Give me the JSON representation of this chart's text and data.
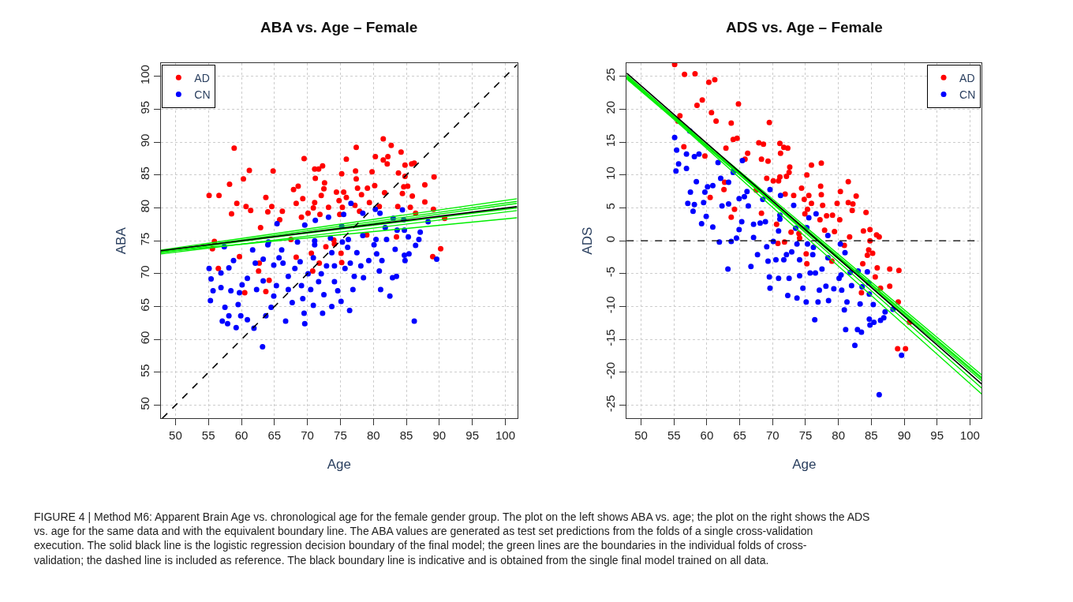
{
  "chart_data": [
    {
      "type": "scatter",
      "title": "ABA vs. Age – Female",
      "xlabel": "Age",
      "ylabel": "ABA",
      "xlim": [
        47.8,
        101.8
      ],
      "ylim": [
        48,
        102
      ],
      "xticks": [
        50,
        55,
        60,
        65,
        70,
        75,
        80,
        85,
        90,
        95,
        100
      ],
      "yticks": [
        50,
        55,
        60,
        65,
        70,
        75,
        80,
        85,
        90,
        95,
        100
      ],
      "grid": true,
      "legend": "top left",
      "annotations": [
        "FIGURE 4 | Method M6: Apparent Brain Age vs. chronological age for the female gender group. The plot on the left shows ABA vs. age; the plot on the right shows the ADS vs. age for the same data and with the equivalent boundary line. The ABA values are generated as test set predictions from the folds of a single cross-validation execution. The solid black line is the logistic regression decision boundary of the final model; the green lines are the boundaries in the individual folds of cross-validation; the dashed line is included as reference. The black boundary line is indicative and is obtained from the single final model trained on all data."
      ],
      "series": [
        {
          "name": "AD",
          "color": "#ff0000",
          "x": [
            55.1,
            56.6,
            58.9,
            61.2,
            58.2,
            60.3,
            59.3,
            60.7,
            61.4,
            58.5,
            62.9,
            63.7,
            64.8,
            64.6,
            64.0,
            66.2,
            65.8,
            67.9,
            68.6,
            69.5,
            68.3,
            69.3,
            69.1,
            70.1,
            71.1,
            72.3,
            71.7,
            71.2,
            72.6,
            72.5,
            72.1,
            71.1,
            70.9,
            71.9,
            73.2,
            74.4,
            75.5,
            75.9,
            75.9,
            75.2,
            74.8,
            75.3,
            74.9,
            77.4,
            77.3,
            77.4,
            77.6,
            78.2,
            77.2,
            77.9,
            79.1,
            79.8,
            80.2,
            80.3,
            79.4,
            80.9,
            81.5,
            81.5,
            82.2,
            82.1,
            82.7,
            81.7,
            84.2,
            83.8,
            84.8,
            85.8,
            86.2,
            84.8,
            84.6,
            85.2,
            84.4,
            85.9,
            83.7,
            85.6,
            87.8,
            89.2,
            87.8,
            89.1,
            90.8,
            86.4,
            55.9,
            55.6,
            56.5,
            59.7,
            62.7,
            62.6,
            64.2,
            60.5,
            63.7,
            67.5,
            68.3,
            70.6,
            70.8,
            71.8,
            72.8,
            74.0,
            75.1,
            75.2,
            74.1,
            89.0,
            90.2,
            83.5,
            79.0
          ],
          "values": [
            81.9,
            81.9,
            89.1,
            85.7,
            83.6,
            84.4,
            80.7,
            80.2,
            79.6,
            79.1,
            77.0,
            81.6,
            85.6,
            80.2,
            79.4,
            79.5,
            78.2,
            82.8,
            83.3,
            87.5,
            80.7,
            81.4,
            78.6,
            79.2,
            85.9,
            86.4,
            85.9,
            84.5,
            83.8,
            82.9,
            81.9,
            80.8,
            80.0,
            79.0,
            80.1,
            82.4,
            82.4,
            81.6,
            87.4,
            85.2,
            81.1,
            80.1,
            79.0,
            89.2,
            85.6,
            84.4,
            83.0,
            82.0,
            80.4,
            79.5,
            83.0,
            85.5,
            83.4,
            87.8,
            80.8,
            80.2,
            90.5,
            87.3,
            87.8,
            86.7,
            89.5,
            82.3,
            88.5,
            85.3,
            86.5,
            86.7,
            86.8,
            84.8,
            83.2,
            83.3,
            82.2,
            81.8,
            80.2,
            80.1,
            83.5,
            84.7,
            80.9,
            79.8,
            78.4,
            79.2,
            74.9,
            73.8,
            70.8,
            72.6,
            71.6,
            70.4,
            69.0,
            67.1,
            67.3,
            75.2,
            72.5,
            73.1,
            70.4,
            71.6,
            74.1,
            75.1,
            73.1,
            71.7,
            74.5,
            72.6,
            73.8,
            75.6,
            75.9
          ],
          "marker": "circle"
        },
        {
          "name": "CN",
          "color": "#0000ff",
          "x": [
            65.4,
            69.6,
            71.2,
            73.2,
            76.6,
            75.5,
            78.4,
            80.3,
            81.0,
            84.4,
            83.0,
            84.6,
            88.3,
            84.7,
            85.3,
            87.1,
            81.8,
            83.6,
            78.4,
            80.4,
            76.2,
            73.5,
            71.1,
            75.2,
            64.1,
            55.1,
            55.4,
            55.7,
            55.3,
            56.9,
            56.9,
            57.4,
            58.1,
            58.8,
            58.4,
            57.5,
            58.1,
            57.1,
            57.9,
            59.2,
            59.9,
            60.9,
            59.5,
            59.7,
            60.1,
            60.9,
            61.7,
            62.1,
            62.3,
            61.9,
            63.3,
            63.3,
            63.2,
            63.7,
            64.5,
            64.0,
            64.9,
            65.3,
            64.9,
            66.1,
            66.3,
            66.7,
            67.1,
            67.1,
            67.7,
            68.5,
            68.9,
            69.1,
            69.3,
            69.5,
            69.6,
            70.1,
            70.5,
            70.9,
            71.1,
            71.7,
            72.3,
            72.5,
            72.9,
            73.7,
            73.7,
            74.1,
            74.6,
            75.1,
            75.7,
            76.1,
            76.4,
            76.9,
            77.1,
            77.5,
            78.1,
            78.5,
            79.3,
            80.1,
            80.5,
            80.9,
            81.3,
            81.1,
            82.0,
            82.5,
            82.9,
            83.5,
            83.3,
            84.7,
            84.8,
            85.4,
            86.2,
            86.4,
            86.9,
            89.6,
            65.7,
            68.1,
            70.9,
            72.1,
            74.1,
            76.5,
            75.3
          ],
          "values": [
            77.6,
            77.4,
            78.1,
            78.6,
            80.7,
            79.0,
            79.2,
            79.8,
            79.2,
            79.7,
            78.4,
            78.2,
            77.9,
            76.6,
            75.6,
            76.3,
            77.0,
            76.6,
            75.8,
            75.2,
            75.2,
            75.4,
            75.0,
            77.2,
            74.8,
            70.8,
            69.2,
            67.4,
            65.9,
            67.9,
            70.1,
            74.1,
            70.9,
            72.0,
            67.4,
            64.9,
            63.6,
            62.8,
            62.4,
            61.8,
            63.6,
            63.0,
            65.3,
            67.1,
            68.3,
            69.3,
            73.6,
            71.6,
            67.6,
            61.7,
            72.2,
            68.9,
            58.9,
            63.6,
            64.9,
            74.4,
            71.3,
            68.2,
            66.6,
            73.6,
            71.6,
            62.8,
            69.6,
            67.6,
            65.6,
            74.8,
            71.8,
            68.2,
            66.2,
            64.0,
            62.4,
            70.0,
            67.6,
            65.2,
            74.4,
            68.8,
            64.0,
            66.8,
            71.2,
            65.0,
            73.2,
            68.8,
            67.4,
            65.8,
            70.8,
            74.0,
            64.4,
            67.6,
            69.6,
            73.2,
            71.2,
            69.4,
            72.0,
            74.4,
            73.0,
            70.4,
            72.0,
            67.6,
            75.2,
            66.6,
            69.4,
            69.6,
            73.7,
            72.8,
            72.0,
            73.0,
            62.8,
            74.3,
            75.2,
            72.2,
            72.4,
            70.8,
            72.4,
            70.0,
            71.2,
            71.6,
            74.8
          ],
          "marker": "circle"
        },
        {
          "type": "line",
          "color": "#00ee00",
          "x": [
            47.8,
            101.8
          ],
          "values": [
            73.6,
            81.4
          ]
        },
        {
          "type": "line",
          "color": "#00ee00",
          "x": [
            47.8,
            101.8
          ],
          "values": [
            73.4,
            81.0
          ]
        },
        {
          "type": "line",
          "color": "#00ee00",
          "x": [
            47.8,
            101.8
          ],
          "values": [
            73.2,
            80.7
          ]
        },
        {
          "type": "line",
          "color": "#00ee00",
          "x": [
            47.8,
            101.8
          ],
          "values": [
            73.0,
            79.6
          ]
        },
        {
          "type": "line",
          "color": "#00ee00",
          "x": [
            47.8,
            101.8
          ],
          "values": [
            73.3,
            78.5
          ]
        },
        {
          "type": "line",
          "color": "#00ee00",
          "x": [
            47.8,
            101.8
          ],
          "values": [
            73.5,
            80.0
          ]
        },
        {
          "type": "line",
          "color": "#000000",
          "x": [
            47.8,
            101.8
          ],
          "values": [
            73.5,
            80.2
          ]
        },
        {
          "type": "line",
          "color": "#000000",
          "line_style": "dashed",
          "x": [
            48,
            101.8
          ],
          "values": [
            48,
            101.8
          ]
        }
      ]
    },
    {
      "type": "scatter",
      "title": "ADS vs. Age – Female",
      "xlabel": "Age",
      "ylabel": "ADS",
      "xlim": [
        47.8,
        101.8
      ],
      "ylim": [
        -27,
        27
      ],
      "xticks": [
        50,
        55,
        60,
        65,
        70,
        75,
        80,
        85,
        90,
        95,
        100
      ],
      "yticks": [
        -25,
        -20,
        -15,
        -10,
        -5,
        0,
        5,
        10,
        15,
        20,
        25
      ],
      "grid": true,
      "legend": "top right",
      "ref_lines": [
        {
          "axis": "y",
          "value": 0,
          "color": "#000000",
          "line_style": "dashed"
        }
      ],
      "series": [
        {
          "name": "AD",
          "color": "#ff0000",
          "x": [
            55.1,
            56.6,
            58.9,
            61.2,
            58.2,
            60.3,
            59.3,
            60.7,
            61.4,
            58.5,
            62.9,
            63.7,
            64.8,
            64.6,
            64.0,
            66.2,
            65.8,
            67.9,
            68.6,
            69.5,
            68.3,
            69.3,
            69.1,
            70.1,
            71.1,
            72.3,
            71.7,
            71.2,
            72.6,
            72.5,
            72.1,
            71.1,
            70.9,
            71.9,
            73.2,
            74.4,
            75.5,
            75.9,
            75.9,
            75.2,
            74.8,
            75.3,
            74.9,
            77.4,
            77.3,
            77.4,
            77.6,
            78.2,
            77.2,
            77.9,
            79.1,
            79.8,
            80.2,
            80.3,
            79.4,
            80.9,
            81.5,
            81.5,
            82.2,
            82.1,
            82.7,
            81.7,
            84.2,
            83.8,
            84.8,
            85.8,
            86.2,
            84.8,
            84.6,
            85.2,
            84.4,
            85.9,
            83.7,
            85.6,
            87.8,
            89.2,
            87.8,
            89.1,
            90.8,
            86.4,
            55.9,
            55.6,
            56.5,
            59.7,
            62.7,
            62.6,
            64.2,
            60.5,
            63.7,
            67.5,
            68.3,
            70.6,
            70.8,
            71.8,
            72.8,
            74.0,
            75.1,
            75.2,
            74.1,
            89.0,
            90.2,
            83.5,
            79.0
          ],
          "values": [
            26.8,
            25.3,
            null,
            24.5,
            25.4,
            24.1,
            21.4,
            19.5,
            18.2,
            20.6,
            14.1,
            17.9,
            20.8,
            15.6,
            15.4,
            13.3,
            12.4,
            14.9,
            14.7,
            18.0,
            12.4,
            12.1,
            9.5,
            9.1,
            14.8,
            14.1,
            14.2,
            13.3,
            11.2,
            10.4,
            9.8,
            9.7,
            9.1,
            7.1,
            6.9,
            8.0,
            6.9,
            5.7,
            11.5,
            10.0,
            6.3,
            4.8,
            4.1,
            11.8,
            8.3,
            7.0,
            5.4,
            3.8,
            3.2,
            1.6,
            3.9,
            5.7,
            3.2,
            7.5,
            1.4,
            -0.7,
            9.0,
            5.8,
            5.6,
            4.6,
            6.8,
            0.6,
            4.3,
            1.5,
            1.7,
            0.9,
            0.6,
            0.0,
            -1.4,
            -1.9,
            -2.2,
            -4.1,
            -3.5,
            -5.5,
            -4.3,
            -4.5,
            -6.9,
            -9.3,
            -12.4,
            -7.2,
            19.0,
            18.2,
            14.3,
            12.9,
            8.9,
            7.8,
            4.8,
            6.6,
            3.6,
            7.7,
            4.2,
            2.5,
            -0.4,
            -0.2,
            1.3,
            1.1,
            -2.0,
            -3.5,
            0.4,
            -16.4,
            -16.4,
            -7.9,
            -3.1
          ],
          "marker": "circle"
        },
        {
          "name": "CN",
          "color": "#0000ff",
          "x": [
            65.4,
            69.6,
            71.2,
            73.2,
            76.6,
            75.5,
            78.4,
            80.3,
            81.0,
            84.4,
            83.0,
            84.6,
            88.3,
            84.7,
            85.3,
            87.1,
            81.8,
            83.6,
            78.4,
            80.4,
            76.2,
            73.5,
            71.1,
            75.2,
            64.1,
            55.1,
            55.4,
            55.7,
            55.3,
            56.9,
            56.9,
            57.4,
            58.1,
            58.8,
            58.4,
            57.5,
            58.1,
            57.1,
            57.9,
            59.2,
            59.9,
            60.9,
            59.5,
            59.7,
            60.1,
            60.9,
            61.7,
            62.1,
            62.3,
            61.9,
            63.3,
            63.3,
            63.2,
            63.7,
            64.5,
            64.0,
            64.9,
            65.3,
            64.9,
            66.1,
            66.3,
            66.7,
            67.1,
            67.1,
            67.7,
            68.5,
            68.9,
            69.1,
            69.3,
            69.5,
            69.6,
            70.1,
            70.5,
            70.9,
            71.1,
            71.7,
            72.3,
            72.5,
            72.9,
            73.7,
            73.7,
            74.1,
            74.6,
            75.1,
            75.7,
            76.1,
            76.4,
            76.9,
            77.1,
            77.5,
            78.1,
            78.5,
            79.3,
            80.1,
            80.5,
            80.9,
            81.3,
            81.1,
            82.0,
            82.5,
            82.9,
            83.5,
            83.3,
            84.7,
            84.8,
            85.4,
            86.2,
            86.4,
            86.9,
            89.6,
            65.7,
            68.1,
            70.9,
            72.1,
            74.1,
            76.5,
            75.3
          ],
          "values": [
            12.2,
            7.8,
            6.9,
            5.4,
            4.1,
            3.5,
            0.8,
            -0.5,
            -1.8,
            -4.7,
            -4.6,
            -6.4,
            -10.4,
            -8.1,
            -9.7,
            -10.8,
            -4.8,
            -7.0,
            -2.6,
            -5.2,
            -1.0,
            1.9,
            3.9,
            2.0,
            10.7,
            15.7,
            13.8,
            11.7,
            10.6,
            11.0,
            13.2,
            16.7,
            12.8,
            13.2,
            9.0,
            7.4,
            5.5,
            5.7,
            4.5,
            2.6,
            3.7,
            2.1,
            5.8,
            7.4,
            8.2,
            8.4,
            11.9,
            9.5,
            5.3,
            -0.2,
            8.9,
            5.6,
            -4.3,
            -0.1,
            0.4,
            10.4,
            6.4,
            2.9,
            1.7,
            7.5,
            5.3,
            -3.9,
            2.5,
            0.5,
            -2.1,
            6.3,
            2.9,
            -0.9,
            -3.1,
            -5.5,
            -7.2,
            -0.1,
            -2.9,
            -5.7,
            3.3,
            -2.9,
            -8.3,
            -5.7,
            -1.7,
            -8.7,
            -0.5,
            -5.3,
            -7.2,
            -9.3,
            -4.9,
            -2.1,
            -12.0,
            -9.3,
            -7.5,
            -4.3,
            -6.9,
            -9.1,
            -7.3,
            -5.7,
            -7.5,
            -10.5,
            -9.3,
            -13.5,
            -6.8,
            -15.9,
            -13.5,
            -13.9,
            -9.6,
            -11.9,
            -12.8,
            -12.4,
            -23.4,
            -12.1,
            -11.7,
            -17.4,
            6.7,
            2.7,
            1.5,
            -2.1,
            -2.9,
            -4.9,
            -0.5
          ],
          "marker": "circle"
        },
        {
          "type": "line",
          "color": "#00ee00",
          "x": [
            47.8,
            101.8
          ],
          "values": [
            25.0,
            -20.4
          ]
        },
        {
          "type": "line",
          "color": "#00ee00",
          "x": [
            47.8,
            101.8
          ],
          "values": [
            24.8,
            -20.8
          ]
        },
        {
          "type": "line",
          "color": "#00ee00",
          "x": [
            47.8,
            101.8
          ],
          "values": [
            24.6,
            -21.3
          ]
        },
        {
          "type": "line",
          "color": "#00ee00",
          "x": [
            47.8,
            101.8
          ],
          "values": [
            25.2,
            -22.4
          ]
        },
        {
          "type": "line",
          "color": "#00ee00",
          "x": [
            47.8,
            101.8
          ],
          "values": [
            24.9,
            -23.3
          ]
        },
        {
          "type": "line",
          "color": "#00ee00",
          "x": [
            47.8,
            101.8
          ],
          "values": [
            24.7,
            -21.0
          ]
        },
        {
          "type": "line",
          "color": "#000000",
          "x": [
            47.8,
            101.8
          ],
          "values": [
            25.5,
            -21.8
          ]
        }
      ]
    }
  ]
}
